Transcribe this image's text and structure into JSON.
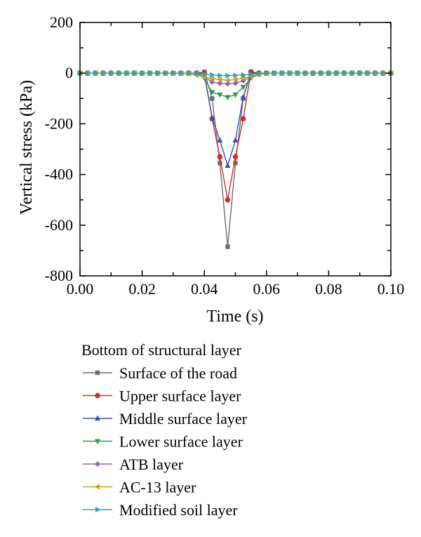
{
  "chart_data": {
    "type": "line",
    "xlabel": "Time (s)",
    "ylabel": "Vertical stress (kPa)",
    "xlim": [
      0.0,
      0.1
    ],
    "ylim": [
      -800,
      200
    ],
    "x_ticks": [
      "0.00",
      "0.02",
      "0.04",
      "0.06",
      "0.08",
      "0.10"
    ],
    "y_ticks": [
      "200",
      "0",
      "-200",
      "-400",
      "-600",
      "-800"
    ],
    "grid": false,
    "legend_title": "Bottom of structural layer",
    "legend_position": "below",
    "x": [
      0.0,
      0.0025,
      0.005,
      0.0075,
      0.01,
      0.0125,
      0.015,
      0.0175,
      0.02,
      0.0225,
      0.025,
      0.0275,
      0.03,
      0.0325,
      0.035,
      0.0375,
      0.04,
      0.0425,
      0.045,
      0.0475,
      0.05,
      0.0525,
      0.055,
      0.0575,
      0.06,
      0.0625,
      0.065,
      0.0675,
      0.07,
      0.0725,
      0.075,
      0.0775,
      0.08,
      0.0825,
      0.085,
      0.0875,
      0.09,
      0.0925,
      0.095,
      0.0975,
      0.1
    ],
    "series": [
      {
        "name": "Surface of the road",
        "color": "#6d6d6d",
        "marker": "square",
        "values": [
          0,
          0,
          0,
          0,
          0,
          0,
          0,
          0,
          0,
          0,
          0,
          0,
          0,
          0,
          0,
          0,
          5,
          -100,
          -355,
          -685,
          -355,
          -100,
          5,
          0,
          0,
          0,
          0,
          0,
          0,
          0,
          0,
          0,
          0,
          0,
          0,
          0,
          0,
          0,
          0,
          0,
          0
        ]
      },
      {
        "name": "Upper surface layer",
        "color": "#d22d27",
        "marker": "circle",
        "values": [
          0,
          0,
          0,
          0,
          0,
          0,
          0,
          0,
          0,
          0,
          0,
          0,
          0,
          0,
          0,
          0,
          2,
          -180,
          -330,
          -500,
          -330,
          -180,
          5,
          0,
          0,
          0,
          0,
          0,
          0,
          0,
          0,
          0,
          0,
          0,
          0,
          0,
          0,
          0,
          0,
          0,
          0
        ]
      },
      {
        "name": "Middle surface layer",
        "color": "#2e55b5",
        "marker": "triangle-up",
        "values": [
          0,
          0,
          0,
          0,
          0,
          0,
          0,
          0,
          0,
          0,
          0,
          0,
          0,
          0,
          0,
          0,
          -5,
          -175,
          -265,
          -365,
          -265,
          -95,
          0,
          0,
          0,
          0,
          0,
          0,
          0,
          0,
          0,
          0,
          0,
          0,
          0,
          0,
          0,
          0,
          0,
          0,
          0
        ]
      },
      {
        "name": "Lower surface layer",
        "color": "#27a045",
        "marker": "triangle-down",
        "values": [
          0,
          0,
          0,
          0,
          0,
          0,
          0,
          0,
          0,
          0,
          0,
          0,
          0,
          0,
          0,
          0,
          -20,
          -75,
          -85,
          -95,
          -85,
          -55,
          -20,
          -5,
          0,
          0,
          0,
          0,
          0,
          0,
          0,
          0,
          0,
          0,
          0,
          0,
          0,
          0,
          0,
          0,
          0
        ]
      },
      {
        "name": "ATB layer",
        "color": "#9a5cc6",
        "marker": "diamond",
        "values": [
          0,
          0,
          0,
          0,
          0,
          0,
          0,
          0,
          0,
          0,
          0,
          0,
          0,
          0,
          0,
          0,
          -15,
          -35,
          -40,
          -42,
          -40,
          -30,
          -15,
          -5,
          0,
          0,
          0,
          0,
          0,
          0,
          0,
          0,
          0,
          0,
          0,
          0,
          0,
          0,
          0,
          0,
          0
        ]
      },
      {
        "name": "AC-13 layer",
        "color": "#c9a21c",
        "marker": "triangle-left",
        "values": [
          0,
          0,
          0,
          0,
          0,
          0,
          0,
          0,
          0,
          0,
          0,
          0,
          0,
          0,
          -3,
          -8,
          -15,
          -22,
          -25,
          -28,
          -25,
          -20,
          -12,
          -5,
          -2,
          0,
          0,
          0,
          0,
          0,
          0,
          0,
          0,
          0,
          0,
          0,
          0,
          0,
          0,
          0,
          0
        ]
      },
      {
        "name": "Modified soil layer",
        "color": "#2aa7a5",
        "marker": "triangle-right",
        "values": [
          0,
          0,
          0,
          0,
          0,
          0,
          0,
          0,
          0,
          0,
          0,
          0,
          0,
          0,
          0,
          -2,
          -4,
          -7,
          -9,
          -10,
          -9,
          -7,
          -4,
          -2,
          0,
          0,
          0,
          0,
          0,
          0,
          0,
          0,
          0,
          0,
          0,
          0,
          0,
          0,
          0,
          0,
          0
        ]
      }
    ]
  }
}
